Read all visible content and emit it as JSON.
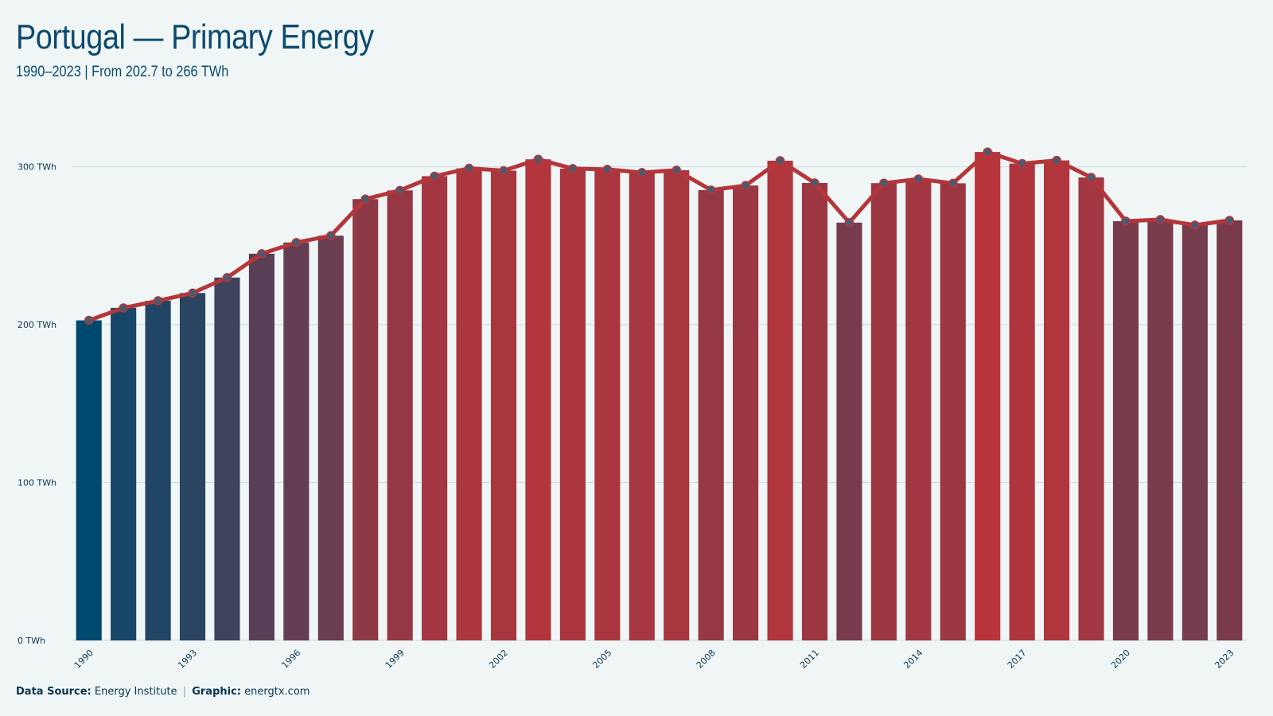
{
  "title": "Portugal — Primary Energy",
  "subtitle": "1990–2023 | From 202.7 to 266 TWh",
  "footer": {
    "source_label": "Data Source:",
    "source_value": "Energy Institute",
    "separator": "|",
    "graphic_label": "Graphic:",
    "graphic_value": "energtx.com"
  },
  "colors": {
    "background": "#f0f6f6",
    "title": "#0b4a6e",
    "line": "#b5363a",
    "marker_fill": "#4c5a70",
    "low_bar": "#00496e",
    "high_bar": "#b8343a",
    "grid": "#d3e0e3"
  },
  "chart_data": {
    "type": "bar",
    "x": [
      1990,
      1991,
      1992,
      1993,
      1994,
      1995,
      1996,
      1997,
      1998,
      1999,
      2000,
      2001,
      2002,
      2003,
      2004,
      2005,
      2006,
      2007,
      2008,
      2009,
      2010,
      2011,
      2012,
      2013,
      2014,
      2015,
      2016,
      2017,
      2018,
      2019,
      2020,
      2021,
      2022,
      2023
    ],
    "values": [
      202.7,
      210.6,
      215.1,
      220.0,
      229.8,
      244.9,
      252.0,
      256.3,
      279.5,
      285.0,
      294.0,
      299.0,
      297.5,
      304.7,
      298.8,
      298.3,
      296.3,
      297.8,
      285.2,
      288.1,
      303.8,
      289.7,
      264.6,
      289.6,
      292.2,
      289.5,
      309.3,
      302.0,
      304.0,
      293.2,
      265.5,
      266.5,
      263.0,
      266.0
    ],
    "overlay": "line-with-markers",
    "xtick_labels": [
      "1990",
      "1993",
      "1996",
      "1999",
      "2002",
      "2005",
      "2008",
      "2011",
      "2014",
      "2017",
      "2020",
      "2023"
    ],
    "yticks": [
      0,
      100,
      200,
      300
    ],
    "ytick_labels": [
      "0 TWh",
      "100 TWh",
      "200 TWh",
      "300 TWh"
    ],
    "ylim": [
      0,
      330
    ],
    "grid": true,
    "xlabel": "",
    "ylabel": ""
  }
}
